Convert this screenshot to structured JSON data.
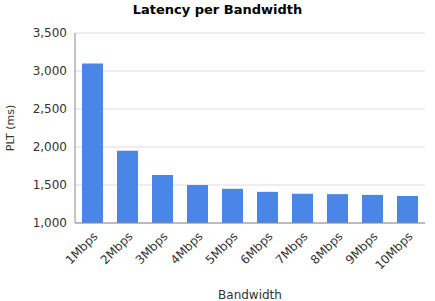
{
  "chart_data": {
    "type": "bar",
    "title": "Latency per Bandwidth",
    "x_label": "Bandwidth",
    "y_label": "PLT (ms)",
    "categories": [
      "1Mbps",
      "2Mbps",
      "3Mbps",
      "4Mbps",
      "5Mbps",
      "6Mbps",
      "7Mbps",
      "8Mbps",
      "9Mbps",
      "10Mbps"
    ],
    "values": [
      3100,
      1950,
      1630,
      1500,
      1450,
      1410,
      1385,
      1380,
      1370,
      1355
    ],
    "color": "#4a86e8",
    "ylim": [
      1000,
      3500
    ],
    "yticks": [
      {
        "value": 1000,
        "label": "1,000"
      },
      {
        "value": 1500,
        "label": "1,500"
      },
      {
        "value": 2000,
        "label": "2,000"
      },
      {
        "value": 2500,
        "label": "2,500"
      },
      {
        "value": 3000,
        "label": "3,000"
      },
      {
        "value": 3500,
        "label": "3,500"
      }
    ],
    "grid": true
  }
}
